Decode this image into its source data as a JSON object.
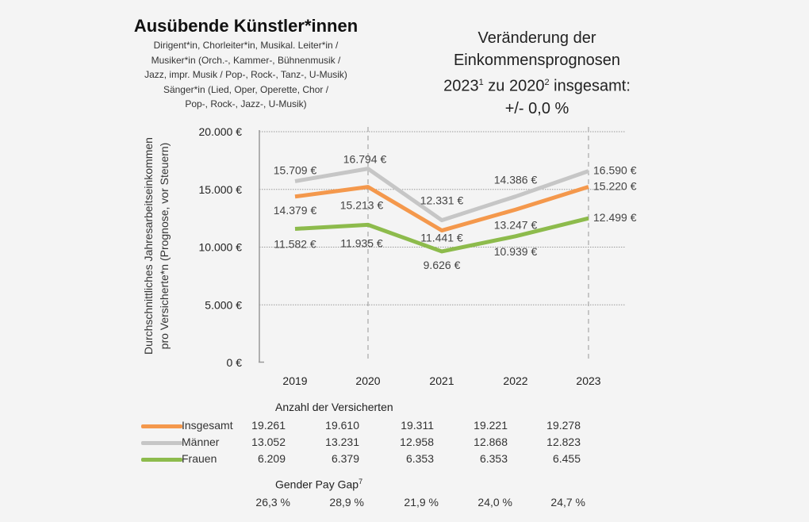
{
  "title": "Ausübende Künstler*innen",
  "subtitle": "Dirigent*in, Chorleiter*in, Musikal. Leiter*in /\nMusiker*in (Orch.-, Kammer-, Bühnenmusik /\nJazz, impr. Musik / Pop-, Rock-, Tanz-, U-Musik)\nSänger*in (Lied, Oper, Operette, Chor /\nPop-, Rock-, Jazz-, U-Musik)",
  "right_title": {
    "line1": "Veränderung der",
    "line2": "Einkommensprognosen",
    "line3_a": "2023",
    "line3_sup1": "1",
    "line3_b": " zu 2020",
    "line3_sup2": "2",
    "line3_c": " insgesamt:",
    "line4": "+/- 0,0 %"
  },
  "chart_data": {
    "type": "line",
    "ylabel": "Durchschnittliches Jahresarbeitseinkommen\npro Versicherte*n (Prognose, vor Steuern)",
    "categories": [
      "2019",
      "2020",
      "2021",
      "2022",
      "2023"
    ],
    "ylim": [
      0,
      20000
    ],
    "yticks": [
      {
        "value": 0,
        "label": "0 €"
      },
      {
        "value": 5000,
        "label": "5.000 €"
      },
      {
        "value": 10000,
        "label": "10.000 €"
      },
      {
        "value": 15000,
        "label": "15.000 €"
      },
      {
        "value": 20000,
        "label": "20.000 €"
      }
    ],
    "grid": "horizontal dotted",
    "series": [
      {
        "name": "Männer",
        "color": "#c6c6c6",
        "values": [
          15709,
          16794,
          12331,
          14386,
          16590
        ],
        "labels": [
          "15.709 €",
          "16.794 €",
          "12.331 €",
          "14.386 €",
          "16.590 €"
        ]
      },
      {
        "name": "Insgesamt",
        "color": "#f4984c",
        "values": [
          14379,
          15213,
          11441,
          13247,
          15220
        ],
        "labels": [
          "14.379 €",
          "15.213 €",
          "11.441 €",
          "13.247 €",
          "15.220 €"
        ]
      },
      {
        "name": "Frauen",
        "color": "#8dbb4c",
        "values": [
          11582,
          11935,
          9626,
          10939,
          12499
        ],
        "labels": [
          "11.582 €",
          "11.935 €",
          "9.626 €",
          "10.939 €",
          "12.499 €"
        ]
      }
    ]
  },
  "table": {
    "heading": "Anzahl der Versicherten",
    "rows": [
      {
        "label": "Insgesamt",
        "color": "#f4984c",
        "values": [
          "19.261",
          "19.610",
          "19.311",
          "19.221",
          "19.278"
        ]
      },
      {
        "label": "Männer",
        "color": "#c6c6c6",
        "values": [
          "13.052",
          "13.231",
          "12.958",
          "12.868",
          "12.823"
        ]
      },
      {
        "label": "Frauen",
        "color": "#8dbb4c",
        "values": [
          "6.209",
          "6.379",
          "6.353",
          "6.353",
          "6.455"
        ]
      }
    ],
    "gap_heading": "Gender Pay Gap",
    "gap_sup": "7",
    "gap_values": [
      "26,3 %",
      "28,9 %",
      "21,9 %",
      "24,0 %",
      "24,7 %"
    ]
  }
}
